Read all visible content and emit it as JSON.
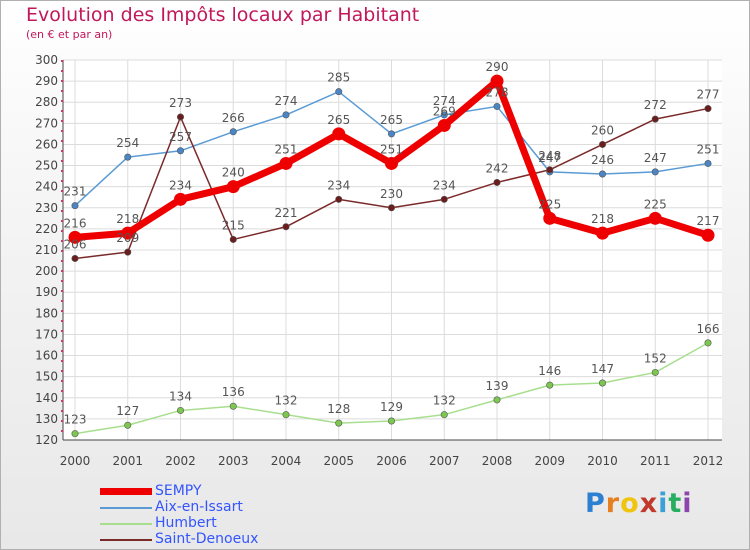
{
  "title": "Evolution des Impôts locaux par Habitant",
  "subtitle": "(en € et par an)",
  "brand": {
    "text": "Proxiti",
    "letters": [
      "P",
      "r",
      "o",
      "x",
      "i",
      "t",
      "i"
    ],
    "colors": [
      "#2c7fd1",
      "#e67e22",
      "#f1c40f",
      "#c0392b",
      "#3aa0d8",
      "#27ae60",
      "#8e44ad"
    ]
  },
  "chart_data": {
    "type": "line",
    "x": [
      "2000",
      "2001",
      "2002",
      "2003",
      "2004",
      "2005",
      "2006",
      "2007",
      "2008",
      "2009",
      "2010",
      "2011",
      "2012"
    ],
    "ylim": [
      120,
      300
    ],
    "yticks": [
      120,
      130,
      140,
      150,
      160,
      170,
      180,
      190,
      200,
      210,
      220,
      230,
      240,
      250,
      260,
      270,
      280,
      290,
      300
    ],
    "grid": true,
    "legend_position": "bottom-left",
    "series": [
      {
        "name": "Aix-en-Issart",
        "color": "#5b9bd5",
        "marker": "#4a86c5",
        "values": [
          231,
          254,
          257,
          266,
          274,
          285,
          265,
          274,
          278,
          247,
          246,
          247,
          251
        ]
      },
      {
        "name": "Humbert",
        "color": "#a8df8e",
        "marker": "#7cc84f",
        "values": [
          123,
          127,
          134,
          136,
          132,
          128,
          129,
          132,
          139,
          146,
          147,
          152,
          166
        ]
      },
      {
        "name": "Saint-Denoeux",
        "color": "#7b2a2a",
        "marker": "#6b1d1d",
        "values": [
          206,
          209,
          273,
          215,
          221,
          234,
          230,
          234,
          242,
          248,
          260,
          272,
          277
        ]
      },
      {
        "name": "SEMPY",
        "color": "#ee0000",
        "marker": "#ee0000",
        "values": [
          216,
          218,
          234,
          240,
          251,
          265,
          251,
          269,
          290,
          225,
          218,
          225,
          217
        ]
      }
    ],
    "legend": [
      {
        "name": "SEMPY",
        "color": "#ee0000"
      },
      {
        "name": "Aix-en-Issart",
        "color": "#5b9bd5"
      },
      {
        "name": "Humbert",
        "color": "#a8df8e"
      },
      {
        "name": "Saint-Denoeux",
        "color": "#7b2a2a"
      }
    ]
  }
}
